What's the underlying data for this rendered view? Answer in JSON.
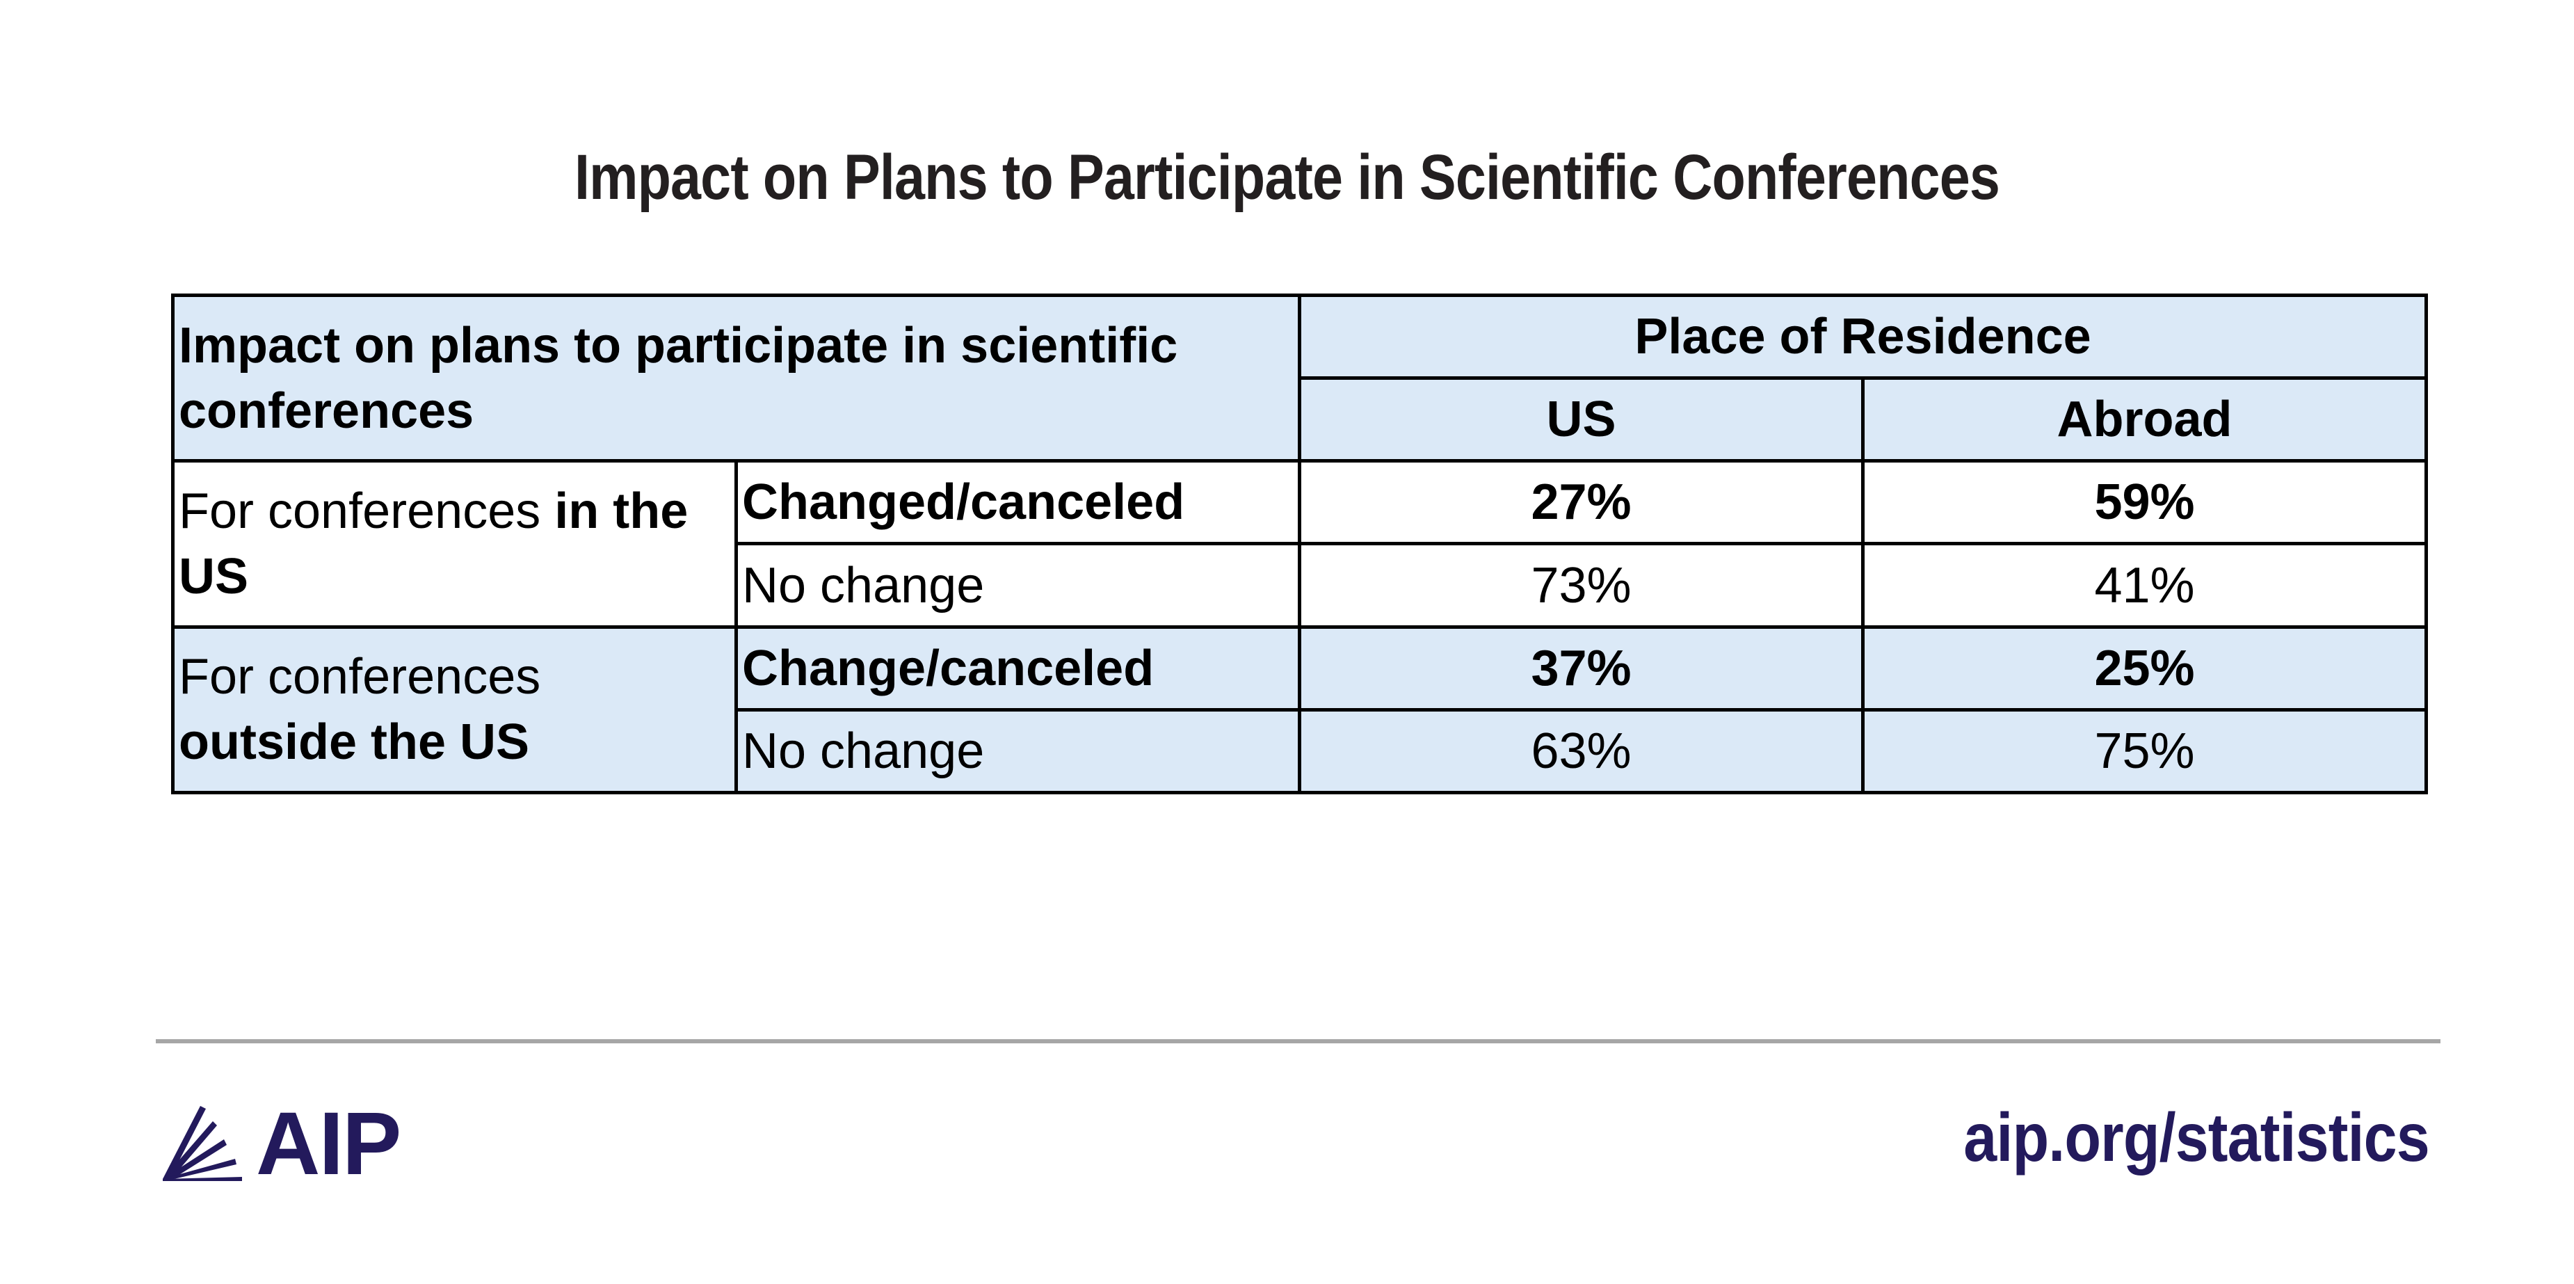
{
  "chart_data": {
    "type": "table",
    "title": "Impact on Plans to Participate in Scientific Conferences",
    "row_header_label": "Impact on plans to participate in scientific conferences",
    "column_group": "Place of Residence",
    "columns": [
      "US",
      "Abroad"
    ],
    "groups": [
      {
        "label_prefix": "For conferences ",
        "label_emphasis": "in the US",
        "rows": [
          {
            "label": "Changed/canceled",
            "values": [
              "27%",
              "59%"
            ],
            "bold": true
          },
          {
            "label": "No change",
            "values": [
              "73%",
              "41%"
            ],
            "bold": false
          }
        ]
      },
      {
        "label_prefix": "For conferences ",
        "label_emphasis": "outside the US",
        "rows": [
          {
            "label": "Change/canceled",
            "values": [
              "37%",
              "25%"
            ],
            "bold": true
          },
          {
            "label": "No change",
            "values": [
              "63%",
              "75%"
            ],
            "bold": false
          }
        ]
      }
    ]
  },
  "footer": {
    "logo_text": "AIP",
    "website": "aip.org/statistics"
  },
  "colors": {
    "header_fill": "#dbe9f7",
    "brand": "#231a5c",
    "rule": "#a6a6a6"
  }
}
